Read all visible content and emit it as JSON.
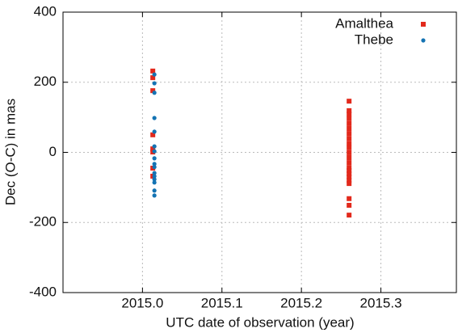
{
  "chart_data": {
    "type": "scatter",
    "x_label": "UTC date of observation (year)",
    "y_label": "Dec (O-C) in mas",
    "xlim": [
      2014.9,
      2015.395
    ],
    "ylim": [
      -400,
      400
    ],
    "xticks": [
      {
        "value": 2015,
        "label": "2015.0"
      },
      2015.1,
      2015.2,
      2015.3
    ],
    "yticks": [
      -400,
      -200,
      0,
      200,
      400
    ],
    "grid": true,
    "legend": "top-right",
    "series": [
      {
        "name": "Amalthea",
        "color": "#e2291c",
        "marker": "square",
        "x": [
          2015.013,
          2015.013,
          2015.013,
          2015.013,
          2015.013,
          2015.013,
          2015.013,
          2015.013,
          2015.26,
          2015.26,
          2015.26,
          2015.26,
          2015.26,
          2015.26,
          2015.26,
          2015.26,
          2015.26,
          2015.26,
          2015.26,
          2015.26,
          2015.26,
          2015.26,
          2015.26,
          2015.26,
          2015.26,
          2015.26,
          2015.26,
          2015.26,
          2015.26,
          2015.26
        ],
        "values": [
          232,
          213,
          176,
          50,
          10,
          1,
          -45,
          -68,
          146,
          119,
          109,
          96,
          82,
          68,
          54,
          40,
          26,
          13,
          -1,
          -15,
          -29,
          -43,
          -52,
          -61,
          -70,
          -80,
          -89,
          -132,
          -151,
          -179
        ]
      },
      {
        "name": "Thebe",
        "color": "#1473b3",
        "marker": "circle",
        "x": [
          2015.015,
          2015.015,
          2015.015,
          2015.015,
          2015.015,
          2015.015,
          2015.015,
          2015.015,
          2015.015,
          2015.015,
          2015.015,
          2015.015,
          2015.015,
          2015.015,
          2015.015,
          2015.015
        ],
        "values": [
          222,
          197,
          170,
          98,
          59,
          17,
          3,
          -17,
          -33,
          -42,
          -59,
          -68,
          -77,
          -86,
          -109,
          -123
        ]
      }
    ]
  }
}
